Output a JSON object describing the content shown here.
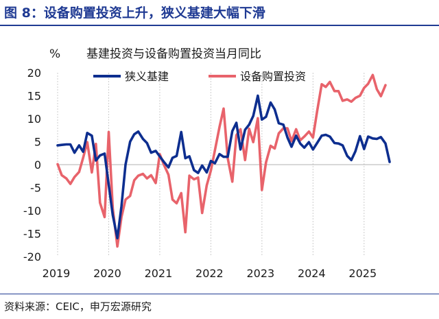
{
  "figure": {
    "title": "图 8：设备购置投资上升，狭义基建大幅下滑",
    "source": "资料来源：CEIC，申万宏源研究"
  },
  "colors": {
    "title": "#1f3a93",
    "series_infra": "#0d2e8f",
    "series_equipment": "#e8636b",
    "gridline": "#cccccc"
  },
  "chart_data": {
    "type": "line",
    "title": "基建投资与设备购置投资当月同比",
    "ylabel": "%",
    "xlabel": "",
    "ylim": [
      -20,
      20
    ],
    "yticks": [
      20,
      15,
      10,
      5,
      0,
      -5,
      -10,
      -15,
      -20
    ],
    "xlim": [
      2019.0,
      2025.5
    ],
    "xticks": [
      {
        "value": 2019,
        "label": "2019"
      },
      {
        "value": 2020,
        "label": "2020"
      },
      {
        "value": 2021,
        "label": "2021"
      },
      {
        "value": 2022,
        "label": "2022"
      },
      {
        "value": 2023,
        "label": "2023"
      },
      {
        "value": 2024,
        "label": "2024"
      },
      {
        "value": 2025,
        "label": "2025"
      }
    ],
    "grid": "vertical",
    "legend": "top",
    "series": [
      {
        "name": "狭义基建",
        "points": [
          [
            2019.0,
            4.2
          ],
          [
            2019.08,
            4.3
          ],
          [
            2019.17,
            4.4
          ],
          [
            2019.25,
            4.4
          ],
          [
            2019.33,
            2.6
          ],
          [
            2019.42,
            4.2
          ],
          [
            2019.5,
            2.8
          ],
          [
            2019.58,
            6.9
          ],
          [
            2019.67,
            6.3
          ],
          [
            2019.75,
            0.9
          ],
          [
            2019.83,
            2.0
          ],
          [
            2019.92,
            2.4
          ],
          [
            2020.08,
            -11.0
          ],
          [
            2020.17,
            -16.0
          ],
          [
            2020.25,
            -9.0
          ],
          [
            2020.33,
            0.0
          ],
          [
            2020.42,
            5.0
          ],
          [
            2020.5,
            6.6
          ],
          [
            2020.58,
            7.2
          ],
          [
            2020.67,
            5.6
          ],
          [
            2020.75,
            4.7
          ],
          [
            2020.83,
            2.6
          ],
          [
            2020.92,
            3.0
          ],
          [
            2021.0,
            1.8
          ],
          [
            2021.08,
            0.6
          ],
          [
            2021.17,
            -0.6
          ],
          [
            2021.25,
            1.5
          ],
          [
            2021.33,
            1.9
          ],
          [
            2021.42,
            7.1
          ],
          [
            2021.5,
            1.4
          ],
          [
            2021.58,
            1.8
          ],
          [
            2021.67,
            -1.2
          ],
          [
            2021.75,
            -1.8
          ],
          [
            2021.83,
            -0.2
          ],
          [
            2021.92,
            -1.7
          ],
          [
            2022.0,
            0.8
          ],
          [
            2022.08,
            0.3
          ],
          [
            2022.17,
            2.3
          ],
          [
            2022.25,
            1.7
          ],
          [
            2022.33,
            1.7
          ],
          [
            2022.42,
            7.3
          ],
          [
            2022.5,
            9.1
          ],
          [
            2022.58,
            3.3
          ],
          [
            2022.67,
            7.6
          ],
          [
            2022.75,
            8.7
          ],
          [
            2022.83,
            10.6
          ],
          [
            2022.92,
            15.0
          ],
          [
            2023.0,
            9.8
          ],
          [
            2023.08,
            10.4
          ],
          [
            2023.17,
            13.5
          ],
          [
            2023.25,
            12.0
          ],
          [
            2023.33,
            9.0
          ],
          [
            2023.42,
            8.7
          ],
          [
            2023.5,
            5.9
          ],
          [
            2023.58,
            3.9
          ],
          [
            2023.67,
            6.3
          ],
          [
            2023.75,
            4.6
          ],
          [
            2023.83,
            3.7
          ],
          [
            2023.92,
            4.9
          ],
          [
            2024.0,
            3.3
          ],
          [
            2024.08,
            4.7
          ],
          [
            2024.17,
            6.3
          ],
          [
            2024.25,
            6.5
          ],
          [
            2024.33,
            6.1
          ],
          [
            2024.42,
            4.7
          ],
          [
            2024.5,
            4.6
          ],
          [
            2024.58,
            4.2
          ],
          [
            2024.67,
            1.9
          ],
          [
            2024.75,
            1.0
          ],
          [
            2024.83,
            2.9
          ],
          [
            2024.92,
            6.2
          ],
          [
            2025.0,
            3.4
          ],
          [
            2025.08,
            6.1
          ],
          [
            2025.17,
            5.7
          ],
          [
            2025.25,
            5.6
          ],
          [
            2025.33,
            6.0
          ],
          [
            2025.42,
            4.6
          ],
          [
            2025.5,
            0.6
          ]
        ]
      },
      {
        "name": "设备购置投资",
        "points": [
          [
            2019.0,
            0.1
          ],
          [
            2019.08,
            -2.3
          ],
          [
            2019.17,
            -3.0
          ],
          [
            2019.25,
            -4.2
          ],
          [
            2019.33,
            -2.7
          ],
          [
            2019.42,
            -1.6
          ],
          [
            2019.5,
            1.5
          ],
          [
            2019.58,
            4.9
          ],
          [
            2019.67,
            -1.7
          ],
          [
            2019.75,
            4.5
          ],
          [
            2019.83,
            -8.3
          ],
          [
            2019.92,
            -11.4
          ],
          [
            2020.0,
            7.1
          ],
          [
            2020.08,
            -9.5
          ],
          [
            2020.17,
            -17.8
          ],
          [
            2020.25,
            -11.4
          ],
          [
            2020.33,
            -7.6
          ],
          [
            2020.42,
            -6.8
          ],
          [
            2020.5,
            -3.4
          ],
          [
            2020.58,
            -2.4
          ],
          [
            2020.67,
            -2.0
          ],
          [
            2020.75,
            -3.0
          ],
          [
            2020.83,
            -2.3
          ],
          [
            2020.92,
            -4.0
          ],
          [
            2021.0,
            2.3
          ],
          [
            2021.08,
            0.0
          ],
          [
            2021.17,
            -2.2
          ],
          [
            2021.25,
            -7.6
          ],
          [
            2021.33,
            -8.4
          ],
          [
            2021.42,
            -6.2
          ],
          [
            2021.5,
            -14.7
          ],
          [
            2021.58,
            -2.4
          ],
          [
            2021.67,
            -3.2
          ],
          [
            2021.75,
            -2.8
          ],
          [
            2021.83,
            -10.5
          ],
          [
            2021.92,
            -4.5
          ],
          [
            2022.0,
            -1.3
          ],
          [
            2022.08,
            3.1
          ],
          [
            2022.17,
            8.2
          ],
          [
            2022.25,
            12.2
          ],
          [
            2022.33,
            1.4
          ],
          [
            2022.42,
            -3.7
          ],
          [
            2022.5,
            6.4
          ],
          [
            2022.58,
            7.7
          ],
          [
            2022.67,
            1.0
          ],
          [
            2022.75,
            7.8
          ],
          [
            2022.83,
            4.9
          ],
          [
            2022.92,
            10.1
          ],
          [
            2023.0,
            -5.5
          ],
          [
            2023.08,
            0.5
          ],
          [
            2023.17,
            4.1
          ],
          [
            2023.25,
            3.5
          ],
          [
            2023.33,
            6.8
          ],
          [
            2023.42,
            7.9
          ],
          [
            2023.5,
            7.9
          ],
          [
            2023.58,
            5.1
          ],
          [
            2023.67,
            7.7
          ],
          [
            2023.75,
            5.3
          ],
          [
            2023.83,
            6.1
          ],
          [
            2023.92,
            7.2
          ],
          [
            2024.0,
            5.9
          ],
          [
            2024.08,
            11.6
          ],
          [
            2024.17,
            17.5
          ],
          [
            2024.25,
            16.9
          ],
          [
            2024.33,
            18.0
          ],
          [
            2024.42,
            16.0
          ],
          [
            2024.5,
            16.0
          ],
          [
            2024.58,
            13.9
          ],
          [
            2024.67,
            14.2
          ],
          [
            2024.75,
            13.7
          ],
          [
            2024.83,
            14.5
          ],
          [
            2024.92,
            15.0
          ],
          [
            2025.0,
            16.7
          ],
          [
            2025.08,
            17.6
          ],
          [
            2025.17,
            19.5
          ],
          [
            2025.25,
            16.4
          ],
          [
            2025.33,
            14.9
          ],
          [
            2025.42,
            17.3
          ]
        ]
      }
    ]
  }
}
